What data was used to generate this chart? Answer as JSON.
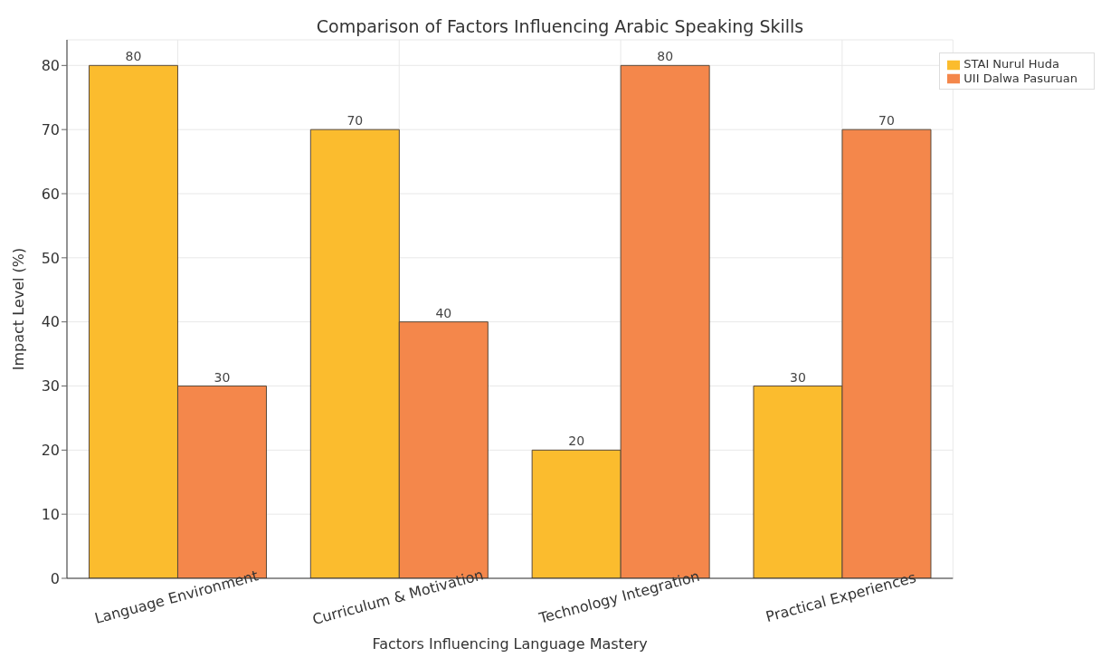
{
  "chart_data": {
    "type": "bar",
    "title": "Comparison of Factors Influencing Arabic Speaking Skills",
    "xlabel": "Factors Influencing Language Mastery",
    "ylabel": "Impact Level (%)",
    "categories": [
      "Language Environment",
      "Curriculum & Motivation",
      "Technology Integration",
      "Practical Experiences"
    ],
    "series": [
      {
        "name": "STAI Nurul Huda",
        "color": "#fbbc2e",
        "values": [
          80,
          70,
          20,
          30
        ]
      },
      {
        "name": "UII Dalwa Pasuruan",
        "color": "#f4874b",
        "values": [
          30,
          40,
          80,
          70
        ]
      }
    ],
    "ylim": [
      0,
      84
    ],
    "yticks": [
      0,
      10,
      20,
      30,
      40,
      50,
      60,
      70,
      80
    ],
    "grid": true,
    "legend": "top right",
    "data_labels": true
  }
}
